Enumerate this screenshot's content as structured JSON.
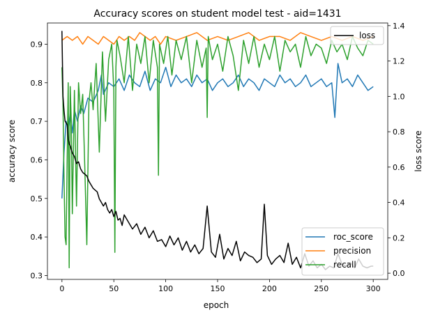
{
  "chart_data": {
    "type": "line",
    "title": "Accuracy scores on student model test - aid=1431",
    "xlabel": "epoch",
    "ylabel": "accuracy score",
    "y2label": "loss score",
    "xlim": [
      -14,
      314
    ],
    "ylim": [
      0.29,
      0.955
    ],
    "y2lim": [
      -0.035,
      1.415
    ],
    "xticks": [
      "0",
      "50",
      "100",
      "150",
      "200",
      "250",
      "300"
    ],
    "xtick_values": [
      0,
      50,
      100,
      150,
      200,
      250,
      300
    ],
    "yticks": [
      "0.3",
      "0.4",
      "0.5",
      "0.6",
      "0.7",
      "0.8",
      "0.9"
    ],
    "ytick_values": [
      0.3,
      0.4,
      0.5,
      0.6,
      0.7,
      0.8,
      0.9
    ],
    "y2ticks": [
      "0.0",
      "0.2",
      "0.4",
      "0.6",
      "0.8",
      "1.0",
      "1.2",
      "1.4"
    ],
    "y2tick_values": [
      0.0,
      0.2,
      0.4,
      0.6,
      0.8,
      1.0,
      1.2,
      1.4
    ],
    "legend_left_axis": {
      "placement": "lower-right",
      "entries": [
        "roc_score",
        "precision",
        "recall"
      ]
    },
    "legend_right_axis": {
      "placement": "upper-right",
      "entries": [
        "loss"
      ]
    },
    "series": [
      {
        "name": "roc_score",
        "axis": "left",
        "color": "#1f77b4",
        "x": [
          0,
          2,
          4,
          6,
          8,
          10,
          12,
          15,
          18,
          21,
          25,
          30,
          35,
          38,
          40,
          45,
          50,
          55,
          60,
          65,
          70,
          75,
          80,
          85,
          90,
          95,
          100,
          105,
          110,
          115,
          120,
          125,
          130,
          135,
          140,
          145,
          150,
          155,
          160,
          165,
          170,
          175,
          180,
          185,
          190,
          195,
          200,
          205,
          210,
          215,
          220,
          225,
          230,
          235,
          240,
          245,
          250,
          255,
          260,
          263,
          266,
          270,
          275,
          280,
          285,
          290,
          295,
          300
        ],
        "y": [
          0.5,
          0.62,
          0.7,
          0.68,
          0.72,
          0.67,
          0.73,
          0.7,
          0.74,
          0.72,
          0.76,
          0.75,
          0.78,
          0.82,
          0.77,
          0.8,
          0.79,
          0.81,
          0.78,
          0.82,
          0.8,
          0.79,
          0.83,
          0.78,
          0.81,
          0.8,
          0.84,
          0.79,
          0.82,
          0.8,
          0.81,
          0.79,
          0.82,
          0.8,
          0.81,
          0.78,
          0.8,
          0.81,
          0.79,
          0.8,
          0.82,
          0.79,
          0.81,
          0.8,
          0.78,
          0.81,
          0.8,
          0.79,
          0.82,
          0.8,
          0.81,
          0.79,
          0.8,
          0.82,
          0.79,
          0.8,
          0.81,
          0.79,
          0.8,
          0.71,
          0.85,
          0.8,
          0.81,
          0.79,
          0.82,
          0.8,
          0.78,
          0.79
        ]
      },
      {
        "name": "precision",
        "axis": "left",
        "color": "#ff7f0e",
        "x": [
          0,
          5,
          10,
          15,
          20,
          25,
          30,
          35,
          40,
          45,
          50,
          55,
          60,
          65,
          70,
          75,
          80,
          85,
          90,
          95,
          100,
          110,
          120,
          130,
          140,
          150,
          160,
          170,
          180,
          190,
          200,
          210,
          220,
          230,
          240,
          250,
          260,
          270,
          280,
          290,
          300
        ],
        "y": [
          0.91,
          0.92,
          0.91,
          0.92,
          0.9,
          0.92,
          0.91,
          0.9,
          0.92,
          0.91,
          0.9,
          0.92,
          0.91,
          0.92,
          0.91,
          0.93,
          0.92,
          0.91,
          0.92,
          0.9,
          0.92,
          0.91,
          0.92,
          0.93,
          0.91,
          0.92,
          0.91,
          0.92,
          0.93,
          0.91,
          0.92,
          0.92,
          0.91,
          0.93,
          0.92,
          0.91,
          0.92,
          0.91,
          0.92,
          0.91,
          0.92
        ]
      },
      {
        "name": "recall",
        "axis": "left",
        "color": "#2ca02c",
        "x": [
          0,
          1,
          2,
          3,
          4,
          5,
          6,
          7,
          8,
          9,
          10,
          12,
          14,
          16,
          18,
          20,
          22,
          24,
          26,
          28,
          30,
          33,
          36,
          39,
          42,
          45,
          48,
          50,
          51,
          52,
          53,
          56,
          60,
          64,
          68,
          72,
          76,
          80,
          84,
          88,
          92,
          93,
          94,
          98,
          102,
          106,
          110,
          115,
          120,
          125,
          130,
          135,
          139,
          140,
          141,
          145,
          150,
          155,
          160,
          165,
          170,
          175,
          180,
          185,
          190,
          195,
          200,
          205,
          210,
          215,
          220,
          225,
          230,
          235,
          240,
          245,
          250,
          255,
          260,
          265,
          270,
          275,
          280,
          285,
          290,
          295,
          300
        ],
        "y": [
          0.84,
          0.75,
          0.55,
          0.4,
          0.38,
          0.6,
          0.8,
          0.32,
          0.79,
          0.7,
          0.46,
          0.78,
          0.48,
          0.8,
          0.72,
          0.77,
          0.58,
          0.38,
          0.75,
          0.8,
          0.73,
          0.85,
          0.62,
          0.88,
          0.7,
          0.86,
          0.9,
          0.78,
          0.36,
          0.84,
          0.91,
          0.87,
          0.8,
          0.92,
          0.78,
          0.9,
          0.85,
          0.92,
          0.8,
          0.91,
          0.84,
          0.56,
          0.9,
          0.85,
          0.92,
          0.82,
          0.91,
          0.86,
          0.92,
          0.8,
          0.91,
          0.84,
          0.89,
          0.71,
          0.92,
          0.86,
          0.9,
          0.83,
          0.92,
          0.87,
          0.78,
          0.91,
          0.85,
          0.92,
          0.84,
          0.9,
          0.86,
          0.92,
          0.83,
          0.91,
          0.88,
          0.9,
          0.84,
          0.92,
          0.87,
          0.9,
          0.89,
          0.85,
          0.91,
          0.88,
          0.9,
          0.86,
          0.92,
          0.89,
          0.87,
          0.91,
          0.9
        ]
      },
      {
        "name": "loss",
        "axis": "right",
        "color": "#000000",
        "x": [
          0,
          1,
          2,
          3,
          4,
          5,
          6,
          7,
          8,
          10,
          12,
          14,
          16,
          18,
          20,
          22,
          24,
          26,
          28,
          30,
          32,
          34,
          36,
          38,
          40,
          42,
          44,
          46,
          48,
          50,
          52,
          54,
          56,
          58,
          60,
          64,
          68,
          72,
          76,
          80,
          84,
          88,
          92,
          96,
          100,
          104,
          108,
          112,
          116,
          120,
          124,
          128,
          132,
          136,
          140,
          144,
          148,
          152,
          156,
          160,
          164,
          168,
          172,
          176,
          180,
          184,
          188,
          192,
          195,
          198,
          202,
          206,
          210,
          214,
          218,
          222,
          226,
          230,
          234,
          238,
          242,
          246,
          250,
          254,
          258,
          262,
          266,
          270,
          274,
          278,
          282,
          286,
          290,
          294,
          298,
          300
        ],
        "y": [
          1.37,
          1.0,
          0.92,
          0.86,
          0.85,
          0.84,
          0.76,
          0.73,
          0.72,
          0.68,
          0.66,
          0.62,
          0.63,
          0.59,
          0.57,
          0.56,
          0.55,
          0.52,
          0.5,
          0.48,
          0.47,
          0.46,
          0.42,
          0.4,
          0.38,
          0.4,
          0.36,
          0.34,
          0.36,
          0.32,
          0.35,
          0.3,
          0.31,
          0.27,
          0.33,
          0.29,
          0.25,
          0.28,
          0.22,
          0.26,
          0.2,
          0.24,
          0.18,
          0.19,
          0.15,
          0.21,
          0.16,
          0.2,
          0.13,
          0.18,
          0.12,
          0.16,
          0.11,
          0.14,
          0.38,
          0.12,
          0.09,
          0.22,
          0.08,
          0.14,
          0.1,
          0.18,
          0.07,
          0.12,
          0.1,
          0.09,
          0.06,
          0.08,
          0.39,
          0.1,
          0.05,
          0.08,
          0.1,
          0.06,
          0.17,
          0.05,
          0.09,
          0.03,
          0.11,
          0.04,
          0.07,
          0.03,
          0.05,
          0.02,
          0.04,
          0.03,
          0.11,
          0.05,
          0.04,
          0.06,
          0.03,
          0.08,
          0.04,
          0.03,
          0.04,
          0.04
        ]
      }
    ]
  }
}
